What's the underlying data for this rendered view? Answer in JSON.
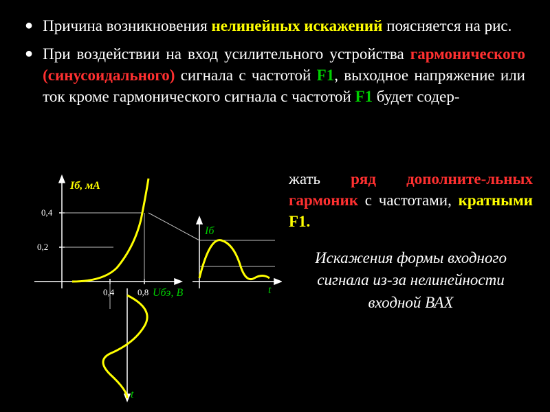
{
  "bullets": [
    {
      "segments": [
        {
          "t": "Причина возникновения ",
          "cls": "white"
        },
        {
          "t": "нелинейных искажений",
          "cls": "yellow-bold"
        },
        {
          "t": " поясняется на рис.",
          "cls": "white"
        }
      ]
    },
    {
      "segments": [
        {
          "t": "При воздействии на вход усилительного устройства ",
          "cls": "white"
        },
        {
          "t": "гармонического (синусоидального)",
          "cls": "red-bold"
        },
        {
          "t": " сигнала с частотой ",
          "cls": "white"
        },
        {
          "t": "F1",
          "cls": "green-bold"
        },
        {
          "t": ", выходное напряжение или ток кроме гармонического сигнала с частотой ",
          "cls": "white"
        },
        {
          "t": "F1 ",
          "cls": "green-bold"
        },
        {
          "t": "будет содер-",
          "cls": "white"
        }
      ]
    }
  ],
  "right1_segments": [
    {
      "t": "жать ",
      "cls": "white"
    },
    {
      "t": "ряд дополните-льных гармоник",
      "cls": "red-bold"
    },
    {
      "t": " с частотами, ",
      "cls": "white"
    },
    {
      "t": "кратными F1.",
      "cls": "yellow-bold"
    }
  ],
  "right2": "Искажения формы входного сигнала из-за нелинейности входной ВАХ",
  "diagram": {
    "ib_label": "Iб, мА",
    "ib2_label": "Iб",
    "ube_label": "Uбэ, В",
    "t_label": "t",
    "t2_label": "t",
    "ticks_y": [
      "0,4",
      "0,2"
    ],
    "ticks_x": [
      "0,4",
      "0,8"
    ],
    "colors": {
      "axis": "#ffffff",
      "curve": "#ffff00",
      "guide": "#c0c0c0",
      "label_yellow": "#ffff00",
      "label_green": "#00d000"
    }
  }
}
